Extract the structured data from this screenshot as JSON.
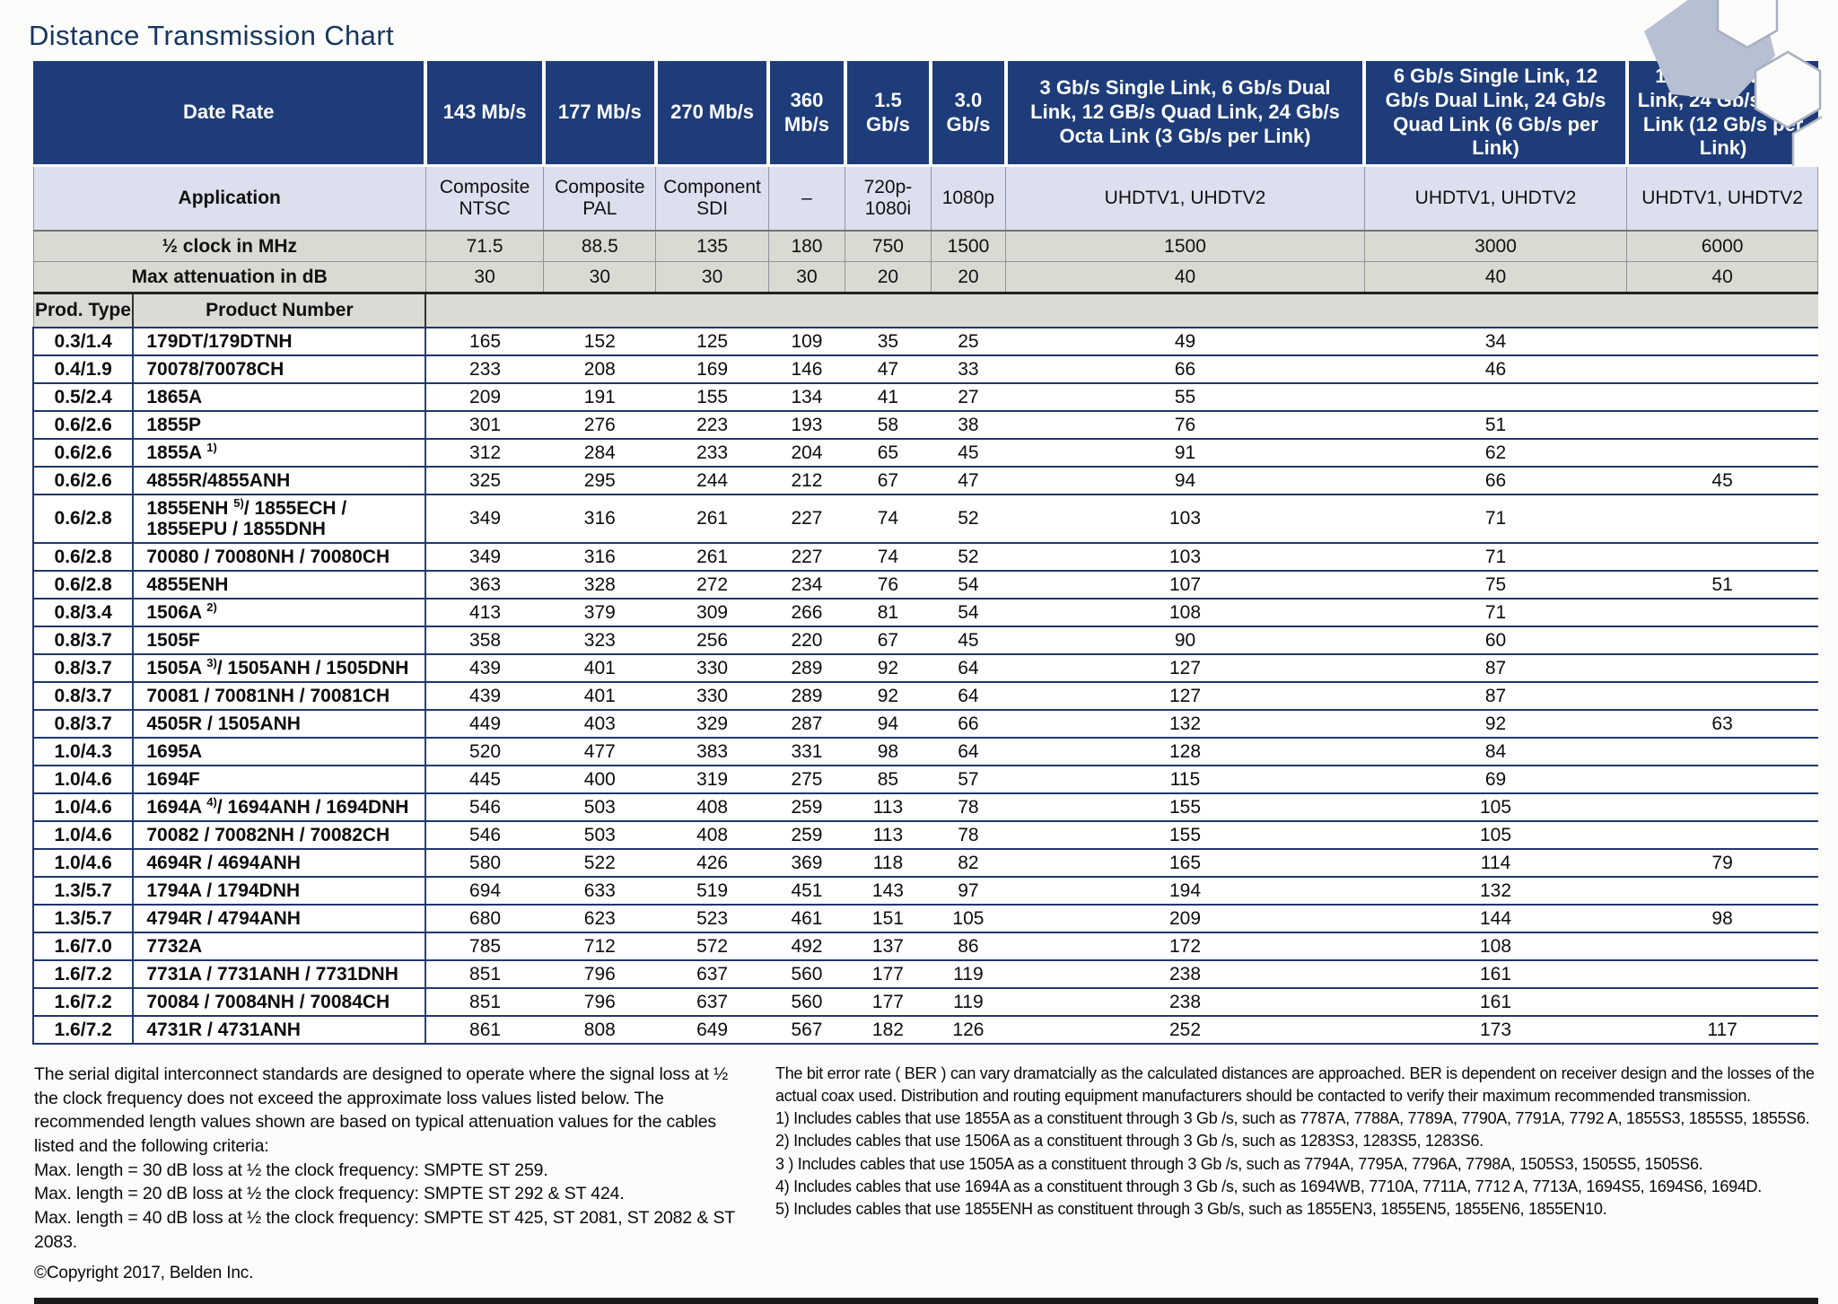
{
  "title": "Distance Transmission Chart",
  "colors": {
    "header_blue": "#1e3c7a",
    "application_row": "#dcdfee",
    "spec_row_gray": "#d9dbd3",
    "row_border_navy": "#22366b",
    "title_navy": "#16355f"
  },
  "table": {
    "header": {
      "date_rate_label": "Date Rate",
      "rate_columns": [
        "143 Mb/s",
        "177 Mb/s",
        "270 Mb/s",
        "360 Mb/s",
        "1.5 Gb/s",
        "3.0 Gb/s",
        "3 Gb/s Single Link, 6 Gb/s Dual Link, 12 GB/s Quad Link, 24 Gb/s Octa Link (3 Gb/s per Link)",
        "6 Gb/s Single Link, 12 Gb/s Dual Link, 24 Gb/s Quad Link (6 Gb/s per Link)",
        "12 Gb/s Single Link, 24 Gb/s Dual Link (12 Gb/s per Link)"
      ],
      "application_label": "Application",
      "applications": [
        "Composite NTSC",
        "Composite PAL",
        "Component SDI",
        "–",
        "720p-1080i",
        "1080p",
        "UHDTV1, UHDTV2",
        "UHDTV1, UHDTV2",
        "UHDTV1, UHDTV2"
      ],
      "half_clock_label": "½ clock in MHz",
      "half_clock": [
        "71.5",
        "88.5",
        "135",
        "180",
        "750",
        "1500",
        "1500",
        "3000",
        "6000"
      ],
      "max_attenuation_label": "Max attenuation in dB",
      "max_attenuation": [
        "30",
        "30",
        "30",
        "30",
        "20",
        "20",
        "40",
        "40",
        "40"
      ],
      "prod_type_label": "Prod. Type",
      "product_number_label": "Product Number"
    },
    "rows": [
      {
        "type": "0.3/1.4",
        "product": "179DT/179DTNH",
        "values": [
          "165",
          "152",
          "125",
          "109",
          "35",
          "25",
          "49",
          "34",
          ""
        ]
      },
      {
        "type": "0.4/1.9",
        "product": "70078/70078CH",
        "values": [
          "233",
          "208",
          "169",
          "146",
          "47",
          "33",
          "66",
          "46",
          ""
        ]
      },
      {
        "type": "0.5/2.4",
        "product": "1865A",
        "values": [
          "209",
          "191",
          "155",
          "134",
          "41",
          "27",
          "55",
          "",
          ""
        ]
      },
      {
        "type": "0.6/2.6",
        "product": "1855P",
        "values": [
          "301",
          "276",
          "223",
          "193",
          "58",
          "38",
          "76",
          "51",
          ""
        ]
      },
      {
        "type": "0.6/2.6",
        "product": "1855A ^1)",
        "values": [
          "312",
          "284",
          "233",
          "204",
          "65",
          "45",
          "91",
          "62",
          ""
        ]
      },
      {
        "type": "0.6/2.6",
        "product": "4855R/4855ANH",
        "values": [
          "325",
          "295",
          "244",
          "212",
          "67",
          "47",
          "94",
          "66",
          "45"
        ]
      },
      {
        "type": "0.6/2.8",
        "product": "1855ENH ^5)/ 1855ECH / 1855EPU / 1855DNH",
        "values": [
          "349",
          "316",
          "261",
          "227",
          "74",
          "52",
          "103",
          "71",
          ""
        ]
      },
      {
        "type": "0.6/2.8",
        "product": "70080 / 70080NH / 70080CH",
        "values": [
          "349",
          "316",
          "261",
          "227",
          "74",
          "52",
          "103",
          "71",
          ""
        ]
      },
      {
        "type": "0.6/2.8",
        "product": "4855ENH",
        "values": [
          "363",
          "328",
          "272",
          "234",
          "76",
          "54",
          "107",
          "75",
          "51"
        ]
      },
      {
        "type": "0.8/3.4",
        "product": "1506A ^2)",
        "values": [
          "413",
          "379",
          "309",
          "266",
          "81",
          "54",
          "108",
          "71",
          ""
        ]
      },
      {
        "type": "0.8/3.7",
        "product": "1505F",
        "values": [
          "358",
          "323",
          "256",
          "220",
          "67",
          "45",
          "90",
          "60",
          ""
        ]
      },
      {
        "type": "0.8/3.7",
        "product": "1505A ^3)/ 1505ANH / 1505DNH",
        "values": [
          "439",
          "401",
          "330",
          "289",
          "92",
          "64",
          "127",
          "87",
          ""
        ]
      },
      {
        "type": "0.8/3.7",
        "product": "70081 / 70081NH / 70081CH",
        "values": [
          "439",
          "401",
          "330",
          "289",
          "92",
          "64",
          "127",
          "87",
          ""
        ]
      },
      {
        "type": "0.8/3.7",
        "product": "4505R / 1505ANH",
        "values": [
          "449",
          "403",
          "329",
          "287",
          "94",
          "66",
          "132",
          "92",
          "63"
        ]
      },
      {
        "type": "1.0/4.3",
        "product": "1695A",
        "values": [
          "520",
          "477",
          "383",
          "331",
          "98",
          "64",
          "128",
          "84",
          ""
        ]
      },
      {
        "type": "1.0/4.6",
        "product": "1694F",
        "values": [
          "445",
          "400",
          "319",
          "275",
          "85",
          "57",
          "115",
          "69",
          ""
        ]
      },
      {
        "type": "1.0/4.6",
        "product": "1694A ^4)/ 1694ANH / 1694DNH",
        "values": [
          "546",
          "503",
          "408",
          "259",
          "113",
          "78",
          "155",
          "105",
          ""
        ]
      },
      {
        "type": "1.0/4.6",
        "product": "70082 / 70082NH / 70082CH",
        "values": [
          "546",
          "503",
          "408",
          "259",
          "113",
          "78",
          "155",
          "105",
          ""
        ]
      },
      {
        "type": "1.0/4.6",
        "product": "4694R / 4694ANH",
        "values": [
          "580",
          "522",
          "426",
          "369",
          "118",
          "82",
          "165",
          "114",
          "79"
        ]
      },
      {
        "type": "1.3/5.7",
        "product": "1794A / 1794DNH",
        "values": [
          "694",
          "633",
          "519",
          "451",
          "143",
          "97",
          "194",
          "132",
          ""
        ]
      },
      {
        "type": "1.3/5.7",
        "product": "4794R / 4794ANH",
        "values": [
          "680",
          "623",
          "523",
          "461",
          "151",
          "105",
          "209",
          "144",
          "98"
        ]
      },
      {
        "type": "1.6/7.0",
        "product": "7732A",
        "values": [
          "785",
          "712",
          "572",
          "492",
          "137",
          "86",
          "172",
          "108",
          ""
        ]
      },
      {
        "type": "1.6/7.2",
        "product": "7731A / 7731ANH / 7731DNH",
        "values": [
          "851",
          "796",
          "637",
          "560",
          "177",
          "119",
          "238",
          "161",
          ""
        ]
      },
      {
        "type": "1.6/7.2",
        "product": "70084 / 70084NH / 70084CH",
        "values": [
          "851",
          "796",
          "637",
          "560",
          "177",
          "119",
          "238",
          "161",
          ""
        ]
      },
      {
        "type": "1.6/7.2",
        "product": "4731R / 4731ANH",
        "values": [
          "861",
          "808",
          "649",
          "567",
          "182",
          "126",
          "252",
          "173",
          "117"
        ]
      }
    ]
  },
  "footnotes": {
    "left": {
      "paragraph": "The serial digital interconnect standards are designed to operate where the signal loss at ½ the clock frequency does not exceed the approximate loss values listed below. The recommended length values shown are based on typical attenuation values for the cables listed and the following criteria:",
      "criteria": [
        "Max. length = 30 dB loss at ½ the clock frequency: SMPTE ST 259.",
        "Max. length = 20 dB loss at ½ the clock frequency: SMPTE ST 292 & ST 424.",
        "Max. length = 40 dB loss at ½ the clock frequency: SMPTE ST 425, ST 2081, ST 2082 & ST 2083."
      ],
      "copyright": "©Copyright 2017, Belden Inc."
    },
    "right": {
      "paragraph": "The bit error rate ( BER ) can vary dramatcially as the calculated distances are approached. BER is dependent on receiver design and the losses of the actual coax used. Distribution and routing equipment manufacturers should be contacted to verify their maximum recommended transmission.",
      "notes": [
        "1) Includes cables that use 1855A as a constituent through 3 Gb /s, such as 7787A, 7788A, 7789A, 7790A, 7791A, 7792 A, 1855S3, 1855S5, 1855S6.",
        "2) Includes cables that use 1506A as a constituent through 3 Gb /s, such as 1283S3, 1283S5, 1283S6.",
        "3 ) Includes cables that use 1505A as a constituent through 3 Gb /s, such as 7794A, 7795A, 7796A, 7798A, 1505S3, 1505S5, 1505S6.",
        "4) Includes cables that use 1694A as a constituent through 3 Gb /s, such as 1694WB, 7710A, 7711A, 7712 A, 7713A, 1694S5, 1694S6, 1694D.",
        "5) Includes cables that use 1855ENH as constituent through 3 Gb/s, such as 1855EN3, 1855EN5, 1855EN6, 1855EN10."
      ]
    }
  }
}
